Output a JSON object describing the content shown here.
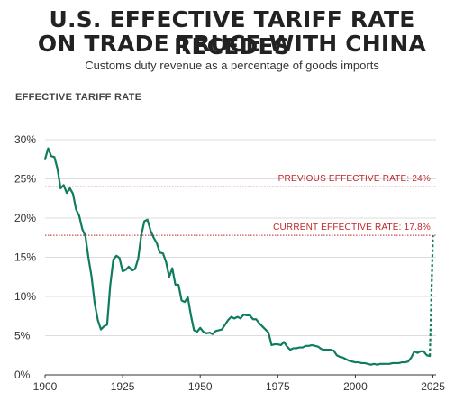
{
  "title_line1": "U.S. EFFECTIVE TARIFF RATE RECEDES",
  "title_line2": "ON TRADE TRUCE WITH CHINA",
  "subtitle": "Customs duty revenue as a percentage of goods imports",
  "colors": {
    "line": "#0e7c5f",
    "reference": "#c0242b",
    "grid": "#dddddd",
    "axis": "#333333",
    "text": "#333333"
  },
  "chart_data": {
    "type": "line",
    "ylabel": "EFFECTIVE TARIFF RATE",
    "xlim": [
      1900,
      2026
    ],
    "ylim": [
      0,
      30
    ],
    "x_ticks": [
      1900,
      1925,
      1950,
      1975,
      2000,
      2025
    ],
    "y_ticks": [
      0,
      5,
      10,
      15,
      20,
      25,
      30
    ],
    "y_tick_labels": [
      "0%",
      "5%",
      "10%",
      "15%",
      "20%",
      "25%",
      "30%"
    ],
    "reference_lines": [
      {
        "label": "PREVIOUS EFFECTIVE RATE: 24%",
        "value": 24
      },
      {
        "label": "CURRENT EFFECTIVE RATE: 17.8%",
        "value": 17.8
      }
    ],
    "series": [
      {
        "style": "solid",
        "x": [
          1900,
          1901,
          1902,
          1903,
          1904,
          1905,
          1906,
          1907,
          1908,
          1909,
          1910,
          1911,
          1912,
          1913,
          1914,
          1915,
          1916,
          1917,
          1918,
          1919,
          1920,
          1921,
          1922,
          1923,
          1924,
          1925,
          1926,
          1927,
          1928,
          1929,
          1930,
          1931,
          1932,
          1933,
          1934,
          1935,
          1936,
          1937,
          1938,
          1939,
          1940,
          1941,
          1942,
          1943,
          1944,
          1945,
          1946,
          1947,
          1948,
          1949,
          1950,
          1951,
          1952,
          1953,
          1954,
          1955,
          1956,
          1957,
          1958,
          1959,
          1960,
          1961,
          1962,
          1963,
          1964,
          1965,
          1966,
          1967,
          1968,
          1969,
          1970,
          1971,
          1972,
          1973,
          1974,
          1975,
          1976,
          1977,
          1978,
          1979,
          1980,
          1981,
          1982,
          1983,
          1984,
          1985,
          1986,
          1987,
          1988,
          1989,
          1990,
          1991,
          1992,
          1993,
          1994,
          1995,
          1996,
          1997,
          1998,
          1999,
          2000,
          2001,
          2002,
          2003,
          2004,
          2005,
          2006,
          2007,
          2008,
          2009,
          2010,
          2011,
          2012,
          2013,
          2014,
          2015,
          2016,
          2017,
          2018,
          2019,
          2020,
          2021,
          2022,
          2023,
          2024
        ],
        "y": [
          27.5,
          28.9,
          27.9,
          27.8,
          26.3,
          23.8,
          24.2,
          23.2,
          23.8,
          23.1,
          21.1,
          20.3,
          18.6,
          17.7,
          14.9,
          12.5,
          9.1,
          7.0,
          5.8,
          6.2,
          6.4,
          11.4,
          14.7,
          15.2,
          14.9,
          13.2,
          13.4,
          13.8,
          13.3,
          13.5,
          14.8,
          17.8,
          19.6,
          19.8,
          18.4,
          17.5,
          16.8,
          15.6,
          15.5,
          14.4,
          12.5,
          13.6,
          11.5,
          11.5,
          9.5,
          9.3,
          9.9,
          7.6,
          5.7,
          5.5,
          6.0,
          5.5,
          5.3,
          5.4,
          5.2,
          5.6,
          5.7,
          5.8,
          6.4,
          7.0,
          7.4,
          7.2,
          7.4,
          7.2,
          7.7,
          7.6,
          7.6,
          7.1,
          7.1,
          6.6,
          6.2,
          5.8,
          5.4,
          3.8,
          3.9,
          3.9,
          3.8,
          4.2,
          3.6,
          3.2,
          3.4,
          3.4,
          3.5,
          3.5,
          3.7,
          3.7,
          3.8,
          3.7,
          3.6,
          3.3,
          3.2,
          3.2,
          3.2,
          3.1,
          2.5,
          2.3,
          2.2,
          2.0,
          1.8,
          1.7,
          1.6,
          1.6,
          1.5,
          1.5,
          1.4,
          1.3,
          1.4,
          1.3,
          1.4,
          1.4,
          1.4,
          1.4,
          1.5,
          1.5,
          1.5,
          1.6,
          1.6,
          1.7,
          2.2,
          3.0,
          2.8,
          3.0,
          3.0,
          2.5,
          2.4
        ]
      },
      {
        "style": "dashed",
        "x": [
          2024,
          2025
        ],
        "y": [
          2.4,
          17.8
        ]
      }
    ]
  }
}
